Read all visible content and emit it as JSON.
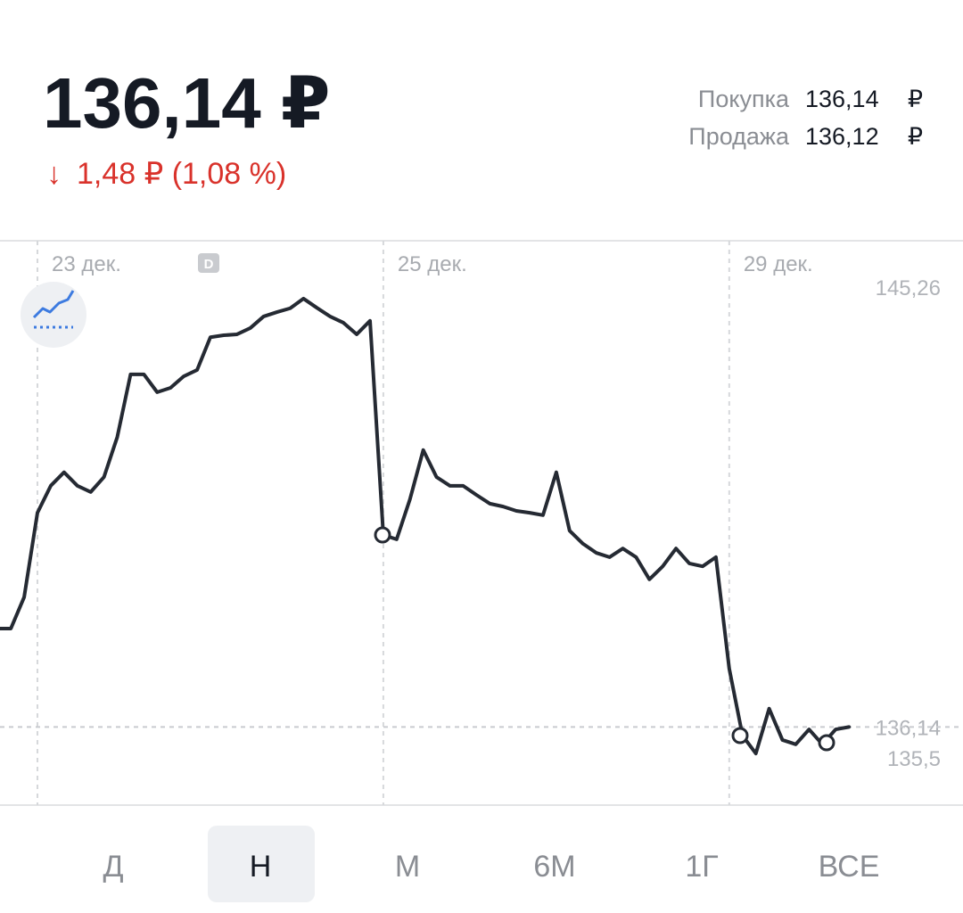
{
  "header": {
    "price": "136,14 ₽",
    "change_arrow": "↓",
    "change": "1,48 ₽ (1,08 %)",
    "buy_label": "Покупка",
    "buy_value": "136,14",
    "buy_currency": "₽",
    "sell_label": "Продажа",
    "sell_value": "136,12",
    "sell_currency": "₽"
  },
  "chart_data": {
    "type": "line",
    "color": "#252a33",
    "badge": "D",
    "categories": [
      null,
      null,
      null,
      "23 дек.",
      null,
      null,
      null,
      null,
      null,
      null,
      null,
      null,
      null,
      null,
      null,
      null,
      null,
      null,
      null,
      null,
      null,
      null,
      null,
      null,
      null,
      null,
      null,
      null,
      null,
      "25 дек.",
      null,
      null,
      null,
      null,
      null,
      null,
      null,
      null,
      null,
      null,
      null,
      null,
      null,
      null,
      null,
      null,
      null,
      null,
      null,
      null,
      null,
      null,
      null,
      null,
      null,
      "29 дек.",
      null,
      null,
      null,
      null,
      null,
      null,
      null,
      null,
      null
    ],
    "values": [
      138.18,
      138.18,
      138.83,
      140.58,
      141.14,
      141.42,
      141.14,
      141.01,
      141.32,
      142.15,
      143.45,
      143.45,
      143.08,
      143.17,
      143.41,
      143.54,
      144.22,
      144.26,
      144.28,
      144.41,
      144.65,
      144.74,
      144.82,
      145.02,
      144.83,
      144.65,
      144.52,
      144.28,
      144.56,
      140.12,
      140.03,
      140.86,
      141.88,
      141.32,
      141.14,
      141.14,
      140.95,
      140.77,
      140.71,
      140.62,
      140.58,
      140.53,
      141.42,
      140.21,
      139.94,
      139.75,
      139.66,
      139.84,
      139.66,
      139.2,
      139.47,
      139.84,
      139.53,
      139.47,
      139.66,
      137.35,
      135.96,
      135.59,
      136.52,
      135.87,
      135.78,
      136.09,
      135.78,
      136.09,
      136.14
    ],
    "ylim": [
      134.52,
      146.22
    ],
    "yticks": [
      {
        "value": 145.26,
        "label": "145,26"
      },
      {
        "value": 136.14,
        "label": "136,14"
      },
      {
        "value": 135.5,
        "label": "135,5"
      }
    ]
  },
  "tabs": [
    "Д",
    "Н",
    "М",
    "6М",
    "1Г",
    "ВСЕ"
  ]
}
